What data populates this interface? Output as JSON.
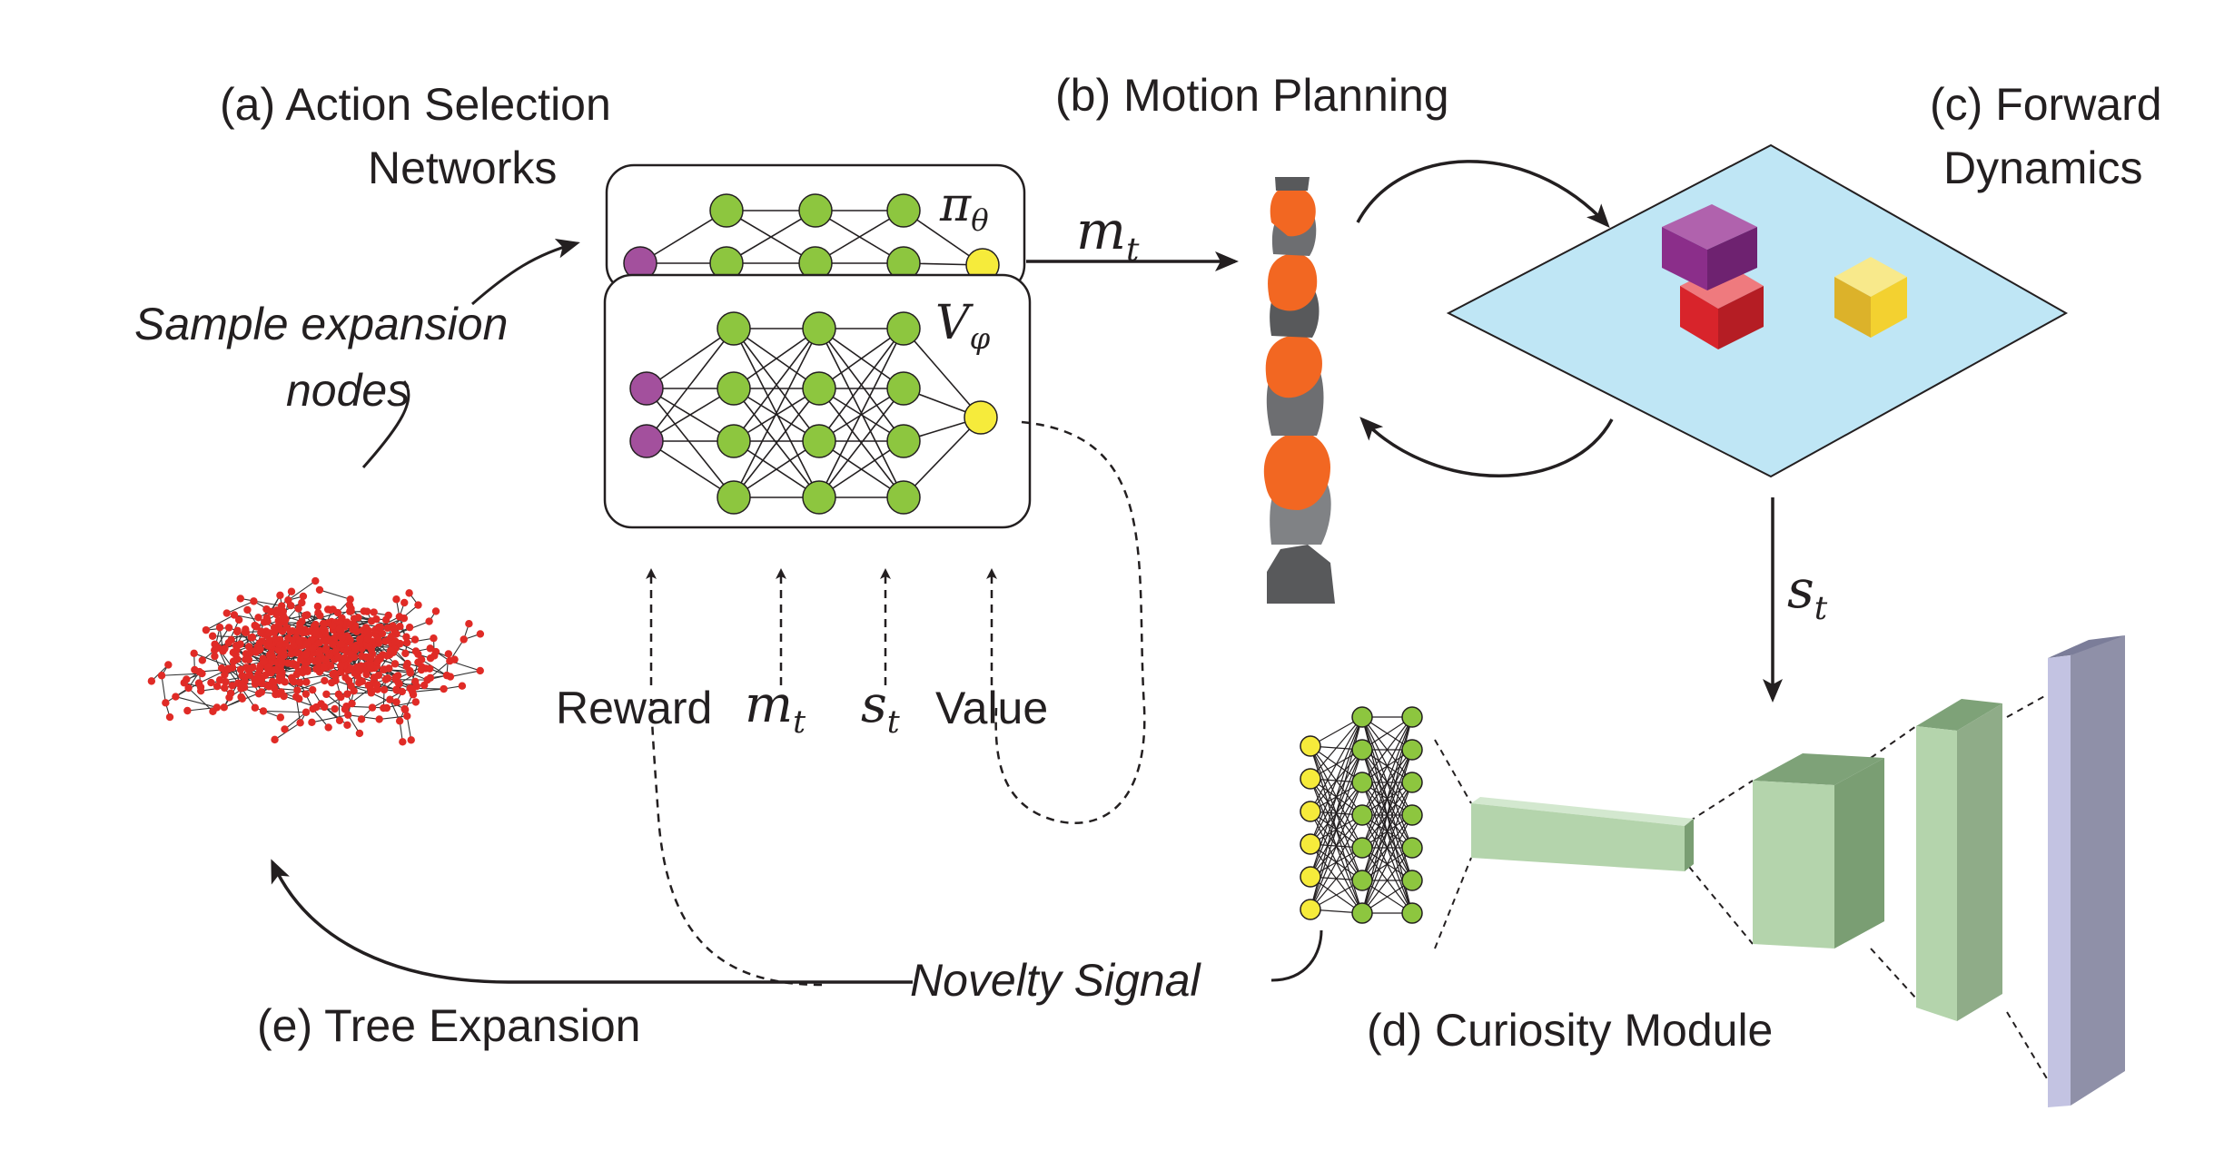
{
  "panels": {
    "a_line1": "(a) Action Selection",
    "a_line2": "Networks",
    "b": "(b) Motion Planning",
    "c_line1": "(c) Forward",
    "c_line2": "Dynamics",
    "d": "(d) Curiosity Module",
    "e": "(e) Tree Expansion"
  },
  "annotations": {
    "sample_line1": "Sample expansion",
    "sample_line2": "nodes",
    "novelty": "Novelty Signal"
  },
  "networks": {
    "policy_symbol": "π",
    "policy_sub": "θ",
    "value_symbol": "V",
    "value_sub": "φ"
  },
  "inputs": {
    "reward": "Reward",
    "m_symbol": "m",
    "m_sub": "t",
    "s_symbol": "s",
    "s_sub": "t",
    "value": "Value"
  },
  "arrows": {
    "m_symbol": "m",
    "m_sub": "t",
    "s_symbol": "s",
    "s_sub": "t"
  },
  "colors": {
    "ink": "#231f20",
    "node_green": "#8dc63f",
    "node_purple": "#a3509d",
    "node_yellow": "#f6eb3b",
    "tree_red": "#e02b26",
    "table_blue": "#bfe6f5",
    "cube_purple": "#8b2e8a",
    "cube_red": "#d8242b",
    "cube_yellow": "#f3d130",
    "layer_green": "#b4d4ac",
    "layer_lavender": "#c3c3e2",
    "robot_orange": "#f26722",
    "robot_gray": "#6d6e71"
  }
}
